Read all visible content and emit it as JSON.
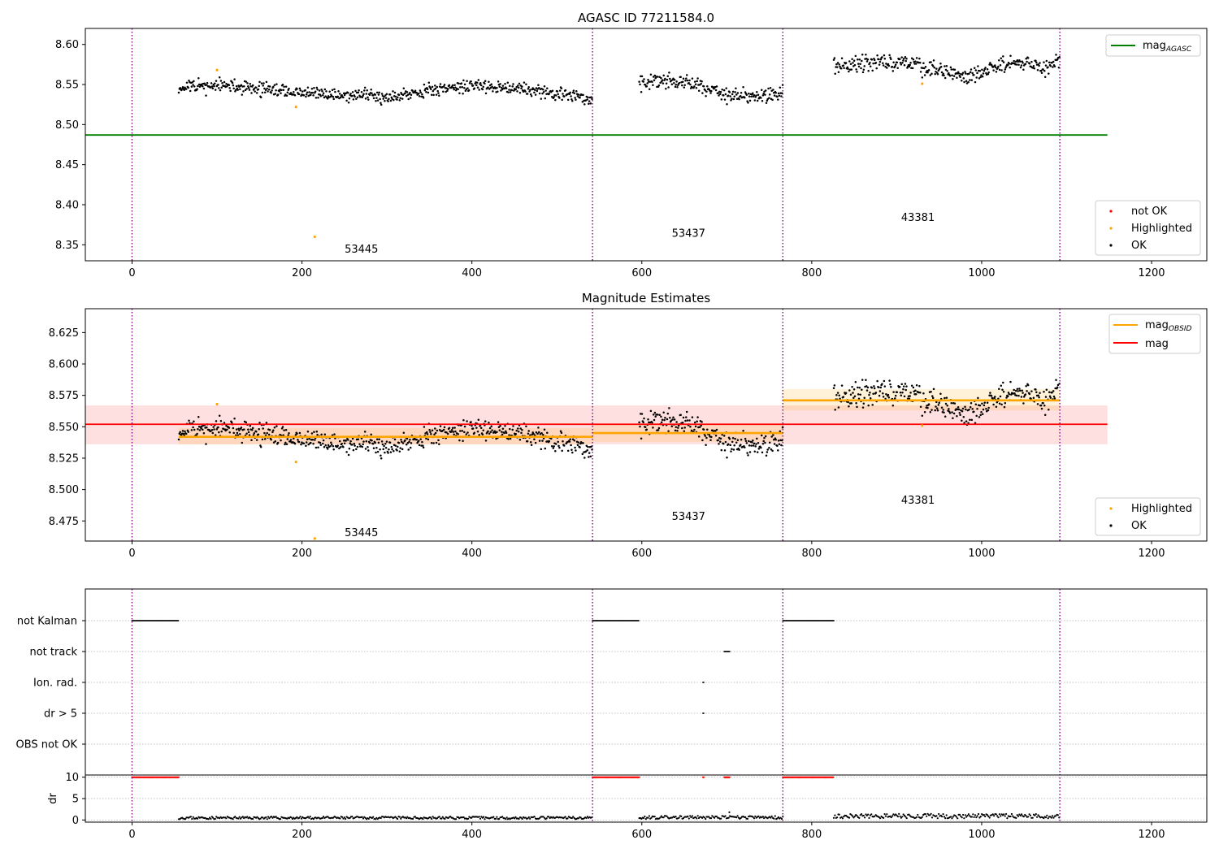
{
  "chart_data": [
    {
      "type": "scatter",
      "title": "AGASC ID 77211584.0",
      "xlim": [
        -55,
        1265
      ],
      "ylim": [
        8.33,
        8.62
      ],
      "xticks": [
        0,
        200,
        400,
        600,
        800,
        1000,
        1200
      ],
      "xtick_labels": [
        "0",
        "200",
        "400",
        "600",
        "800",
        "1000",
        "1200"
      ],
      "yticks": [
        8.35,
        8.4,
        8.45,
        8.5,
        8.55,
        8.6
      ],
      "ytick_labels": [
        "8.35",
        "8.40",
        "8.45",
        "8.50",
        "8.55",
        "8.60"
      ],
      "obs_boundaries": [
        0,
        542,
        766,
        1092
      ],
      "obs_labels": [
        {
          "text": "53445",
          "x": 270,
          "y": 8.345
        },
        {
          "text": "53437",
          "x": 655,
          "y": 8.365
        },
        {
          "text": "43381",
          "x": 925,
          "y": 8.385
        }
      ],
      "hlines": [
        {
          "name": "mag_AGASC",
          "y": 8.487,
          "x0": -55,
          "x1": 1148,
          "color": "#008000"
        }
      ],
      "highlighted_points": [
        [
          100,
          8.568
        ],
        [
          193,
          8.522
        ],
        [
          215,
          8.36
        ],
        [
          930,
          8.551
        ]
      ],
      "segments": [
        {
          "x0": 55,
          "x1": 542,
          "knots": [
            [
              55,
              8.546
            ],
            [
              100,
              8.549
            ],
            [
              150,
              8.545
            ],
            [
              200,
              8.539
            ],
            [
              250,
              8.537
            ],
            [
              300,
              8.535
            ],
            [
              350,
              8.543
            ],
            [
              400,
              8.549
            ],
            [
              450,
              8.546
            ],
            [
              500,
              8.538
            ],
            [
              542,
              8.533
            ]
          ],
          "amp": 0.011
        },
        {
          "x0": 597,
          "x1": 766,
          "knots": [
            [
              597,
              8.55
            ],
            [
              620,
              8.555
            ],
            [
              650,
              8.553
            ],
            [
              680,
              8.546
            ],
            [
              700,
              8.537
            ],
            [
              730,
              8.534
            ],
            [
              766,
              8.541
            ]
          ],
          "amp": 0.012
        },
        {
          "x0": 826,
          "x1": 1092,
          "knots": [
            [
              826,
              8.572
            ],
            [
              860,
              8.576
            ],
            [
              890,
              8.579
            ],
            [
              920,
              8.576
            ],
            [
              950,
              8.567
            ],
            [
              980,
              8.561
            ],
            [
              1010,
              8.57
            ],
            [
              1040,
              8.578
            ],
            [
              1070,
              8.572
            ],
            [
              1092,
              8.578
            ]
          ],
          "amp": 0.014
        }
      ],
      "legend_top": [
        {
          "label": "mag",
          "sub": "AGASC",
          "color": "#008000"
        }
      ],
      "legend_bottom": [
        {
          "label": "not OK",
          "color": "#ff0000"
        },
        {
          "label": "Highlighted",
          "color": "#ffa500"
        },
        {
          "label": "OK",
          "color": "#000000"
        }
      ]
    },
    {
      "type": "scatter",
      "title": "Magnitude Estimates",
      "xlim": [
        -55,
        1265
      ],
      "ylim": [
        8.459,
        8.644
      ],
      "xticks": [
        0,
        200,
        400,
        600,
        800,
        1000,
        1200
      ],
      "xtick_labels": [
        "0",
        "200",
        "400",
        "600",
        "800",
        "1000",
        "1200"
      ],
      "yticks": [
        8.475,
        8.5,
        8.525,
        8.55,
        8.575,
        8.6,
        8.625
      ],
      "ytick_labels": [
        "8.475",
        "8.500",
        "8.525",
        "8.550",
        "8.575",
        "8.600",
        "8.625"
      ],
      "obs_labels": [
        {
          "text": "53445",
          "x": 270,
          "y": 8.466
        },
        {
          "text": "53437",
          "x": 655,
          "y": 8.479
        },
        {
          "text": "43381",
          "x": 925,
          "y": 8.492
        }
      ],
      "mag": {
        "value": 8.552,
        "band": [
          8.536,
          8.567
        ],
        "x0": -55,
        "x1": 1148,
        "color": "#ff0000"
      },
      "mag_obsid": [
        {
          "x0": 55,
          "x1": 542,
          "value": 8.542,
          "band": [
            8.536,
            8.549
          ]
        },
        {
          "x0": 542,
          "x1": 766,
          "value": 8.545,
          "band": [
            8.538,
            8.552
          ]
        },
        {
          "x0": 766,
          "x1": 1092,
          "value": 8.571,
          "band": [
            8.563,
            8.58
          ]
        }
      ],
      "highlighted_points": [
        [
          100,
          8.568
        ],
        [
          193,
          8.522
        ],
        [
          215,
          8.461
        ],
        [
          930,
          8.551
        ]
      ],
      "legend_top": [
        {
          "label": "mag",
          "sub": "OBSID",
          "color": "#ffa500"
        },
        {
          "label": "mag",
          "sub": "",
          "color": "#ff0000"
        }
      ],
      "legend_bottom": [
        {
          "label": "Highlighted",
          "color": "#ffa500"
        },
        {
          "label": "OK",
          "color": "#000000"
        }
      ]
    },
    {
      "type": "scatter",
      "xlim": [
        -55,
        1265
      ],
      "categories": [
        "not Kalman",
        "not track",
        "Ion. rad.",
        "dr > 5",
        "OBS not OK"
      ],
      "flag_ranges": {
        "not Kalman": [
          [
            0,
            55
          ],
          [
            542,
            597
          ],
          [
            766,
            826
          ]
        ],
        "not track": [
          [
            697,
            704
          ]
        ],
        "Ion. rad.": [
          [
            672,
            673
          ]
        ],
        "dr > 5": [
          [
            672,
            673
          ]
        ],
        "OBS not OK": []
      },
      "dr": {
        "ylim": [
          -0.5,
          10.5
        ],
        "yticks": [
          0,
          5,
          10
        ],
        "ytick_labels": [
          "0",
          "5",
          "10"
        ],
        "ylabel": "dr",
        "clipped_value": 10,
        "clipped_ranges": [
          [
            0,
            55
          ],
          [
            542,
            597
          ],
          [
            672,
            673
          ],
          [
            697,
            704
          ],
          [
            766,
            826
          ]
        ],
        "segments": [
          [
            55,
            542,
            0.5
          ],
          [
            597,
            766,
            0.6
          ],
          [
            826,
            1092,
            0.9
          ]
        ],
        "outliers": [
          [
            703,
            1.8
          ]
        ]
      },
      "xticks": [
        0,
        200,
        400,
        600,
        800,
        1000,
        1200
      ],
      "xtick_labels": [
        "0",
        "200",
        "400",
        "600",
        "800",
        "1000",
        "1200"
      ]
    }
  ]
}
